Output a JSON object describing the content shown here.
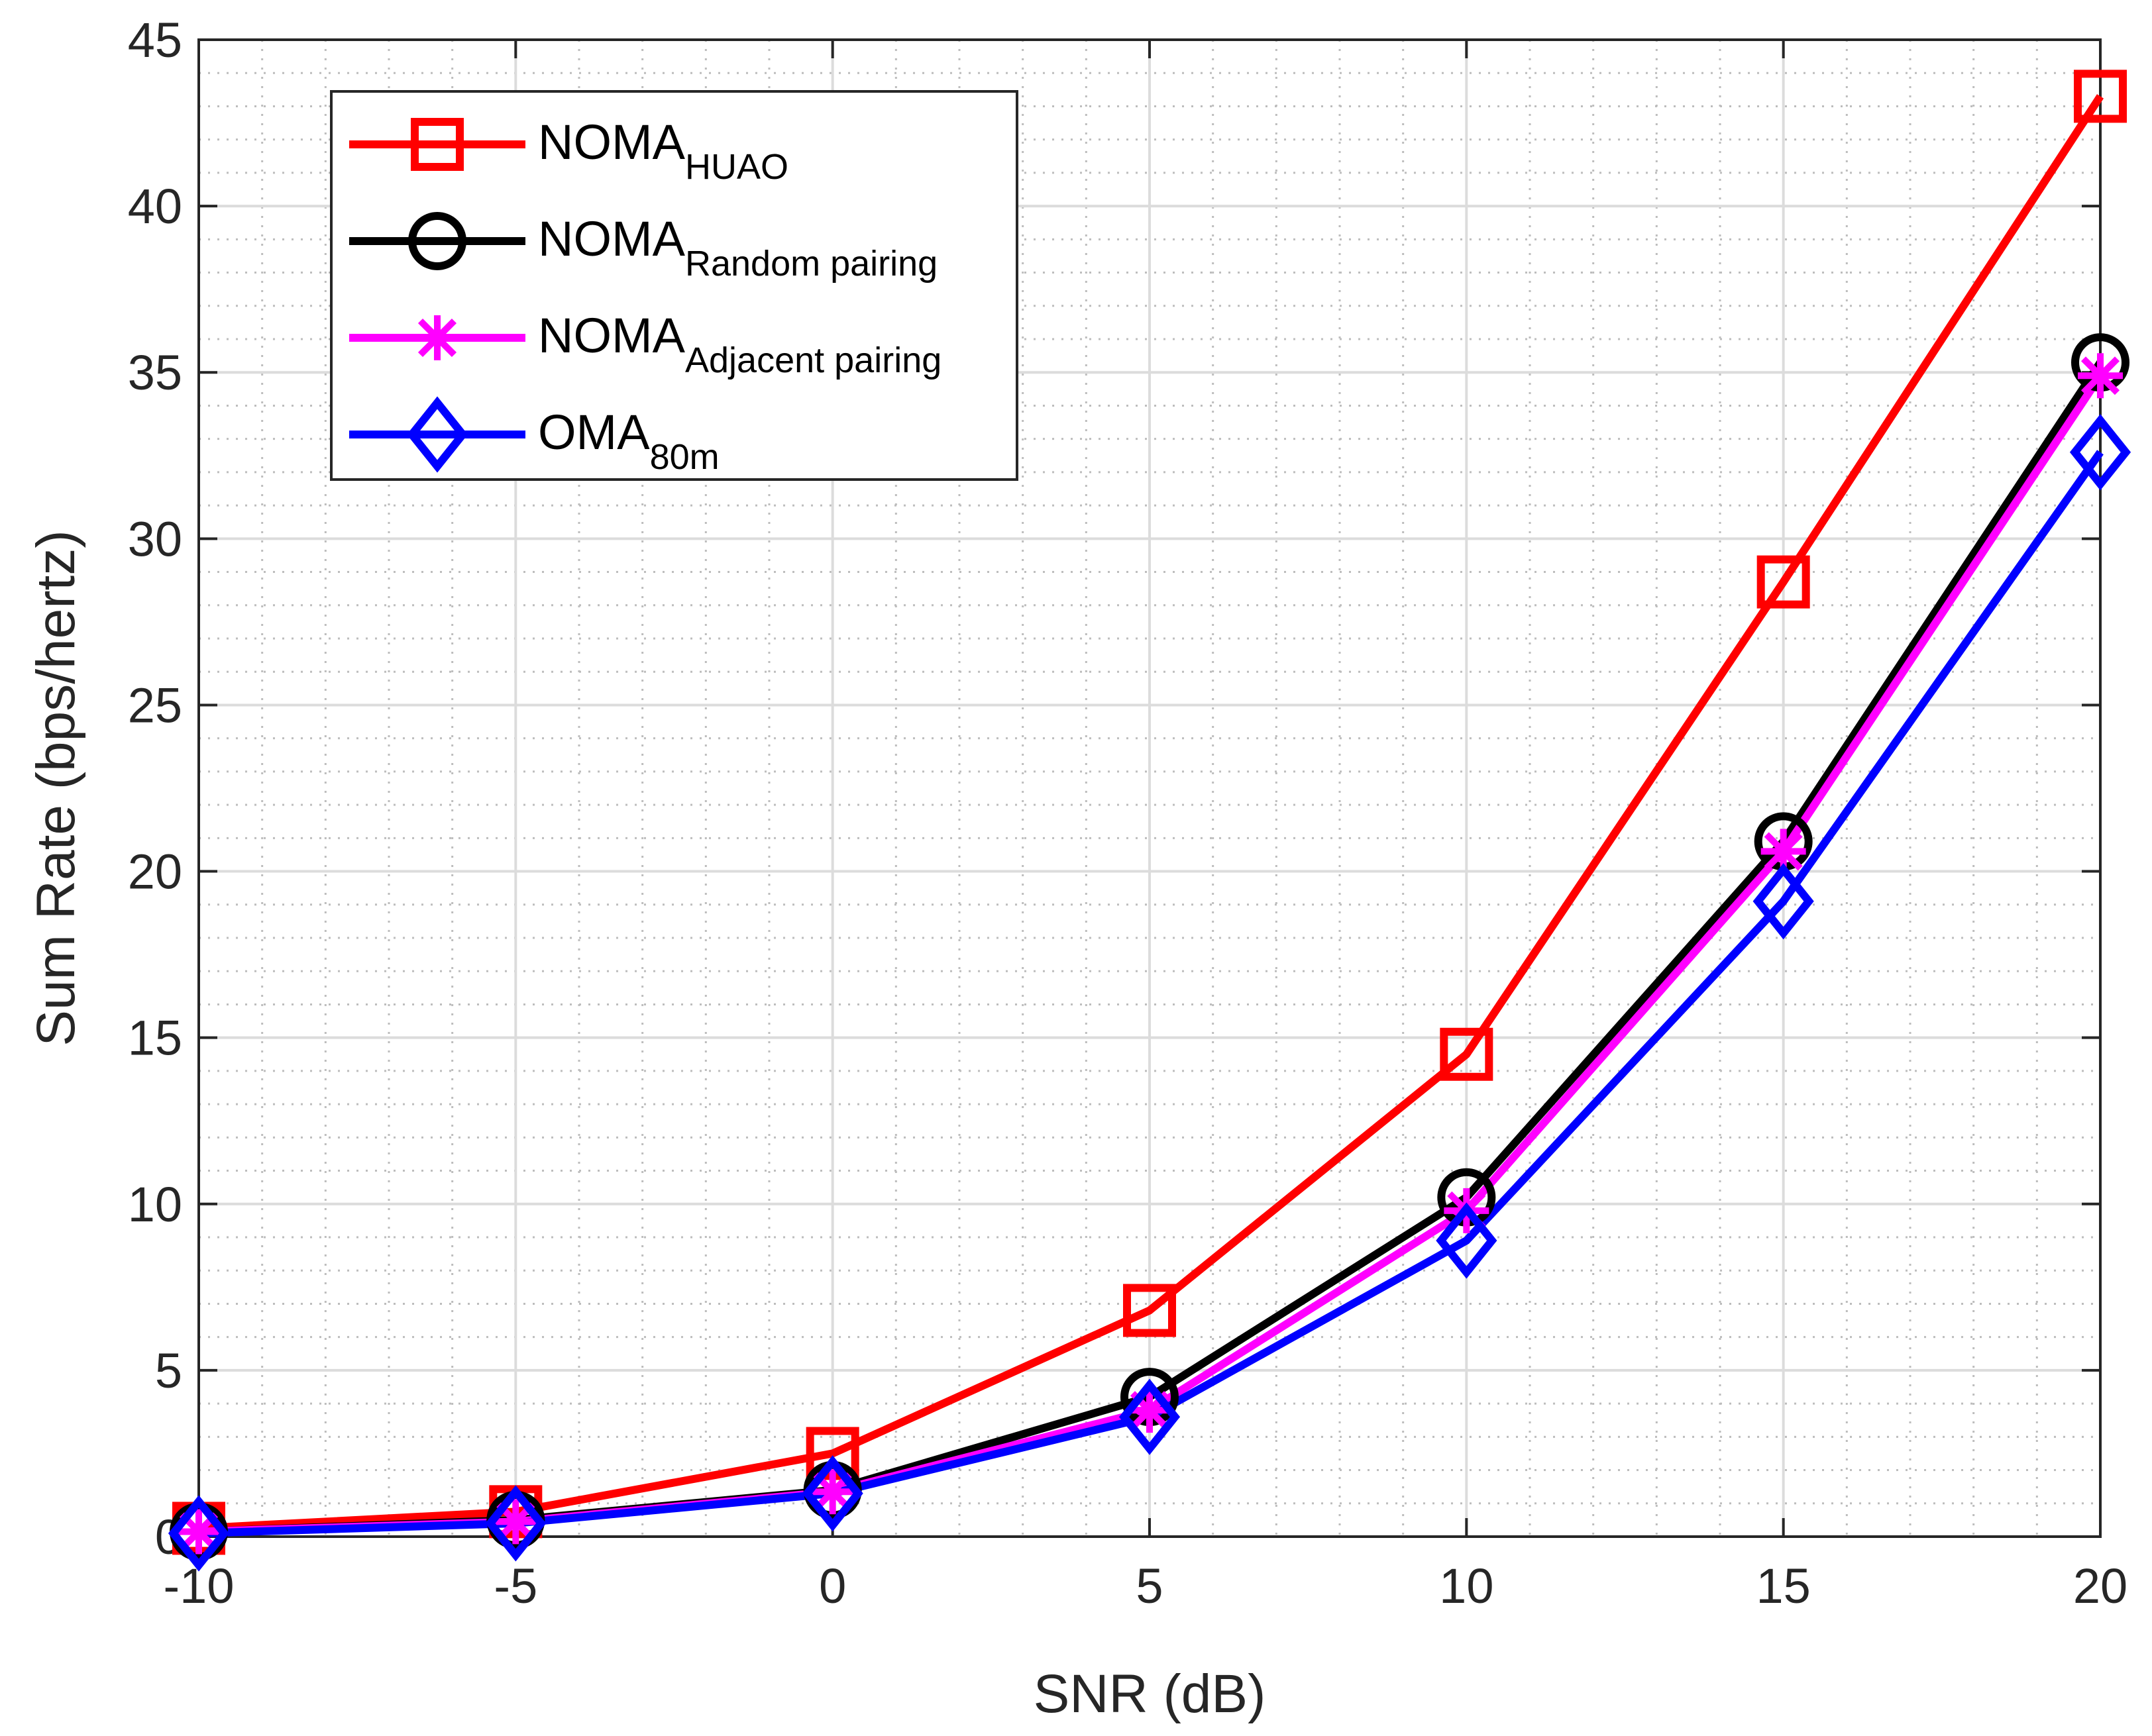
{
  "chart_data": {
    "type": "line",
    "title": "",
    "xlabel": "SNR (dB)",
    "ylabel": "Sum Rate (bps/hertz)",
    "xlim": [
      -10,
      20
    ],
    "ylim": [
      0,
      45
    ],
    "xticks": [
      -10,
      -5,
      0,
      5,
      10,
      15,
      20
    ],
    "yticks": [
      0,
      5,
      10,
      15,
      20,
      25,
      30,
      35,
      40,
      45
    ],
    "x_tick_labels": [
      "-10",
      "-5",
      "0",
      "5",
      "10",
      "15",
      "20"
    ],
    "y_tick_labels": [
      "0",
      "5",
      "10",
      "15",
      "20",
      "25",
      "30",
      "35",
      "40",
      "45"
    ],
    "grid": "major and minor",
    "legend_position": "top-left",
    "x": [
      -10,
      -5,
      0,
      5,
      10,
      15,
      20
    ],
    "series": [
      {
        "name": "NOMA",
        "name_sub": "HUAO",
        "color": "#ff0000",
        "marker": "square",
        "values": [
          0.25,
          0.75,
          2.5,
          6.8,
          14.5,
          28.7,
          43.3
        ]
      },
      {
        "name": "NOMA",
        "name_sub": "Random pairing",
        "color": "#000000",
        "marker": "circle",
        "values": [
          0.15,
          0.5,
          1.4,
          4.2,
          10.2,
          20.9,
          35.3
        ]
      },
      {
        "name": "NOMA",
        "name_sub": "Adjacent pairing",
        "color": "#ff00ff",
        "marker": "asterisk",
        "values": [
          0.15,
          0.45,
          1.35,
          3.8,
          9.8,
          20.6,
          34.9
        ]
      },
      {
        "name": "OMA",
        "name_sub": "80m",
        "color": "#0000ff",
        "marker": "diamond",
        "values": [
          0.1,
          0.4,
          1.3,
          3.6,
          8.9,
          19.1,
          32.6
        ]
      }
    ]
  }
}
